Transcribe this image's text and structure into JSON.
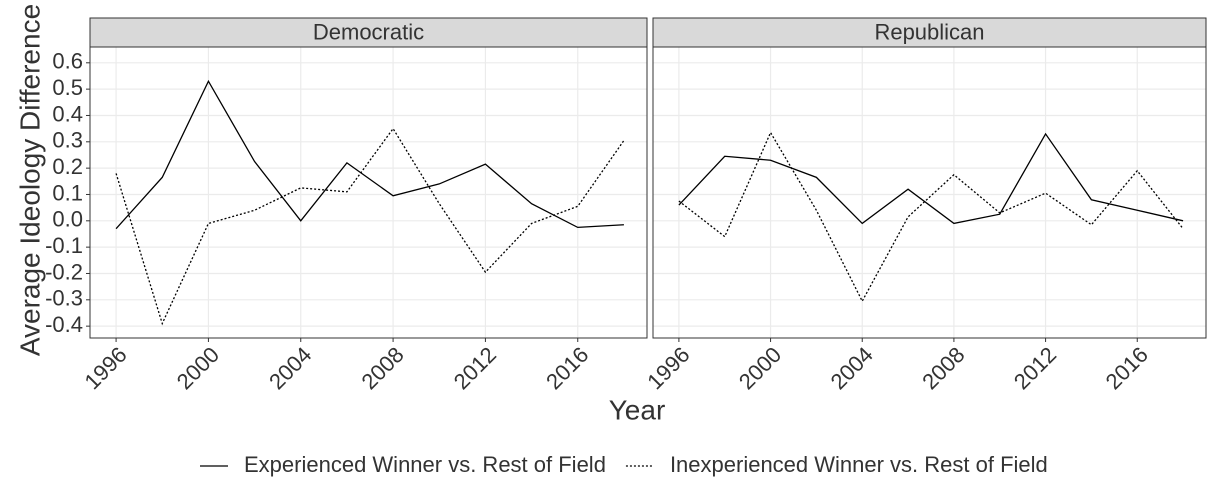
{
  "chart_data": [
    {
      "type": "line",
      "title": "Democratic",
      "x_label": "Year",
      "y_label": "Average Ideology Difference",
      "x": [
        1996,
        1998,
        2000,
        2002,
        2004,
        2006,
        2008,
        2010,
        2012,
        2014,
        2016,
        2018
      ],
      "series": [
        {
          "name": "Experienced Winner vs. Rest of Field",
          "color": "#000000",
          "linestyle": "solid",
          "values": [
            -0.03,
            0.165,
            0.53,
            0.225,
            0.0,
            0.22,
            0.095,
            0.14,
            0.215,
            0.065,
            -0.025,
            -0.015
          ]
        },
        {
          "name": "Inexperienced Winner vs. Rest of Field",
          "color": "#000000",
          "linestyle": "dotted",
          "values": [
            0.18,
            -0.39,
            -0.01,
            0.04,
            0.125,
            0.11,
            0.35,
            0.065,
            -0.195,
            -0.01,
            0.055,
            0.305
          ]
        }
      ],
      "xlim": [
        1994.87,
        2019.0
      ],
      "xticks": [
        1996,
        2000,
        2004,
        2008,
        2012,
        2016
      ],
      "ylim": [
        -0.445,
        0.66
      ],
      "yticks": [
        -0.4,
        -0.3,
        -0.2,
        -0.1,
        {
          "value": 0,
          "label": "0.0"
        },
        0.1,
        0.2,
        0.3,
        0.4,
        0.5,
        0.6
      ],
      "grid": true
    },
    {
      "type": "line",
      "title": "Republican",
      "x": [
        1996,
        1998,
        2000,
        2002,
        2004,
        2006,
        2008,
        2010,
        2012,
        2014,
        2016,
        2018
      ],
      "series": [
        {
          "color": "#000000",
          "linestyle": "solid",
          "values": [
            0.06,
            0.245,
            0.23,
            0.165,
            -0.01,
            0.12,
            -0.01,
            0.025,
            0.33,
            0.08,
            0.04,
            0.0
          ]
        },
        {
          "color": "#000000",
          "linestyle": "dotted",
          "values": [
            0.075,
            -0.06,
            0.335,
            0.04,
            -0.305,
            0.015,
            0.175,
            0.03,
            0.105,
            -0.015,
            0.19,
            -0.03
          ]
        }
      ],
      "xlim": [
        1994.87,
        2019.0
      ],
      "xticks": [
        1996,
        2000,
        2004,
        2008,
        2012,
        2016
      ],
      "ylim": [
        -0.445,
        0.66
      ],
      "grid": true
    }
  ]
}
